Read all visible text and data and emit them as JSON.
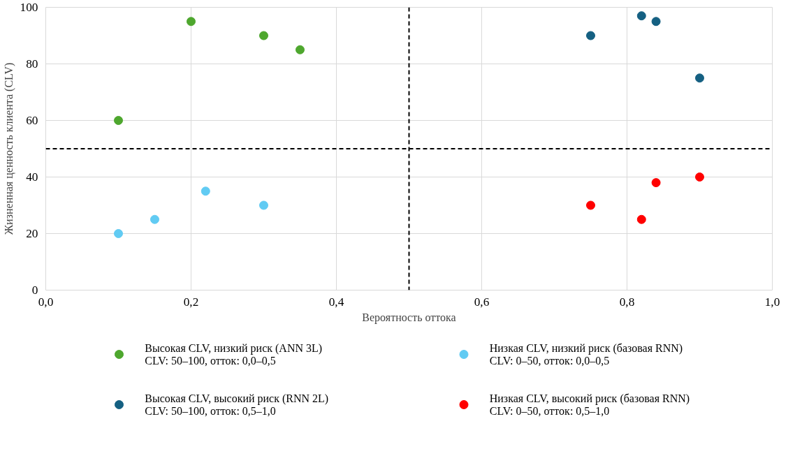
{
  "chart_data": {
    "type": "scatter",
    "xlabel": "Вероятность оттока",
    "ylabel": "Жизненная ценность клиента (CLV)",
    "xlim": [
      0,
      1
    ],
    "ylim": [
      0,
      100
    ],
    "xticks": [
      {
        "value": 0,
        "label": "0,0"
      },
      {
        "value": 0.2,
        "label": "0,2"
      },
      {
        "value": 0.4,
        "label": "0,4"
      },
      {
        "value": 0.6,
        "label": "0,6"
      },
      {
        "value": 0.8,
        "label": "0,8"
      },
      {
        "value": 1,
        "label": "1,0"
      }
    ],
    "yticks": [
      0,
      20,
      40,
      60,
      80,
      100
    ],
    "grid": true,
    "legend": "bottom",
    "marker": "circle",
    "ref_lines": [
      {
        "axis": "x",
        "value": 0.5,
        "color": "#000000",
        "line_style": "dashed"
      },
      {
        "axis": "y",
        "value": 50,
        "color": "#000000",
        "line_style": "dashed"
      }
    ],
    "series": [
      {
        "name": "Высокая CLV, низкий риск (ANN 3L)\nCLV: 50–100, отток: 0,0–0,5",
        "color": "#4ea72e",
        "x": [
          0.1,
          0.2,
          0.3,
          0.35
        ],
        "values": [
          60,
          95,
          90,
          85
        ]
      },
      {
        "name": "Высокая CLV, высокий риск (RNN 2L)\nCLV: 50–100, отток: 0,5–1,0",
        "color": "#156082",
        "x": [
          0.75,
          0.82,
          0.84,
          0.9
        ],
        "values": [
          90,
          97,
          95,
          75
        ]
      },
      {
        "name": "Низкая CLV, низкий риск (базовая RNN)\nCLV: 0–50, отток: 0,0–0,5",
        "color": "#61cbf3",
        "x": [
          0.1,
          0.15,
          0.22,
          0.3
        ],
        "values": [
          20,
          25,
          35,
          30
        ]
      },
      {
        "name": "Низкая CLV, высокий риск (базовая RNN)\nCLV: 0–50, отток: 0,5–1,0",
        "color": "#ff0000",
        "x": [
          0.75,
          0.82,
          0.84,
          0.9
        ],
        "values": [
          30,
          25,
          38,
          40
        ]
      }
    ]
  }
}
